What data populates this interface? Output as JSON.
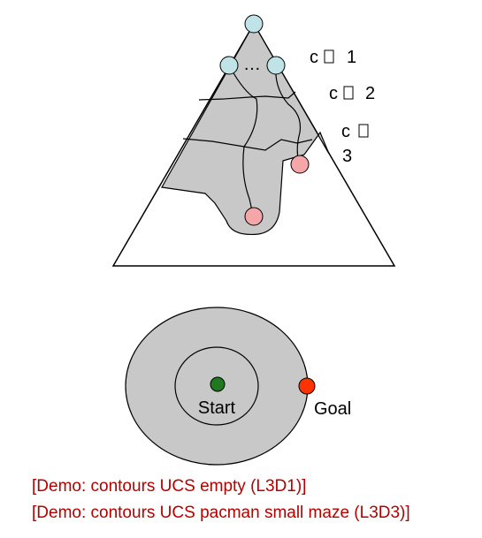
{
  "triangle_diagram": {
    "labels": [
      {
        "c": "c",
        "glyph": "□",
        "value": "1"
      },
      {
        "c": "c",
        "glyph": "□",
        "value": "2"
      },
      {
        "c": "c",
        "glyph": "□",
        "value": "3"
      }
    ],
    "ellipsis": "…",
    "colors": {
      "node_top": "#bfe3e6",
      "node_pink": "#f4a6a8",
      "region": "#c8c8c8",
      "outline": "#000000"
    }
  },
  "circle_diagram": {
    "start_label": "Start",
    "goal_label": "Goal",
    "colors": {
      "start_dot": "#1f7a1f",
      "goal_dot": "#ff3300",
      "fill": "#c8c8c8"
    }
  },
  "demos": [
    "[Demo: contours UCS empty (L3D1)]",
    "[Demo: contours UCS pacman small maze (L3D3)]"
  ]
}
